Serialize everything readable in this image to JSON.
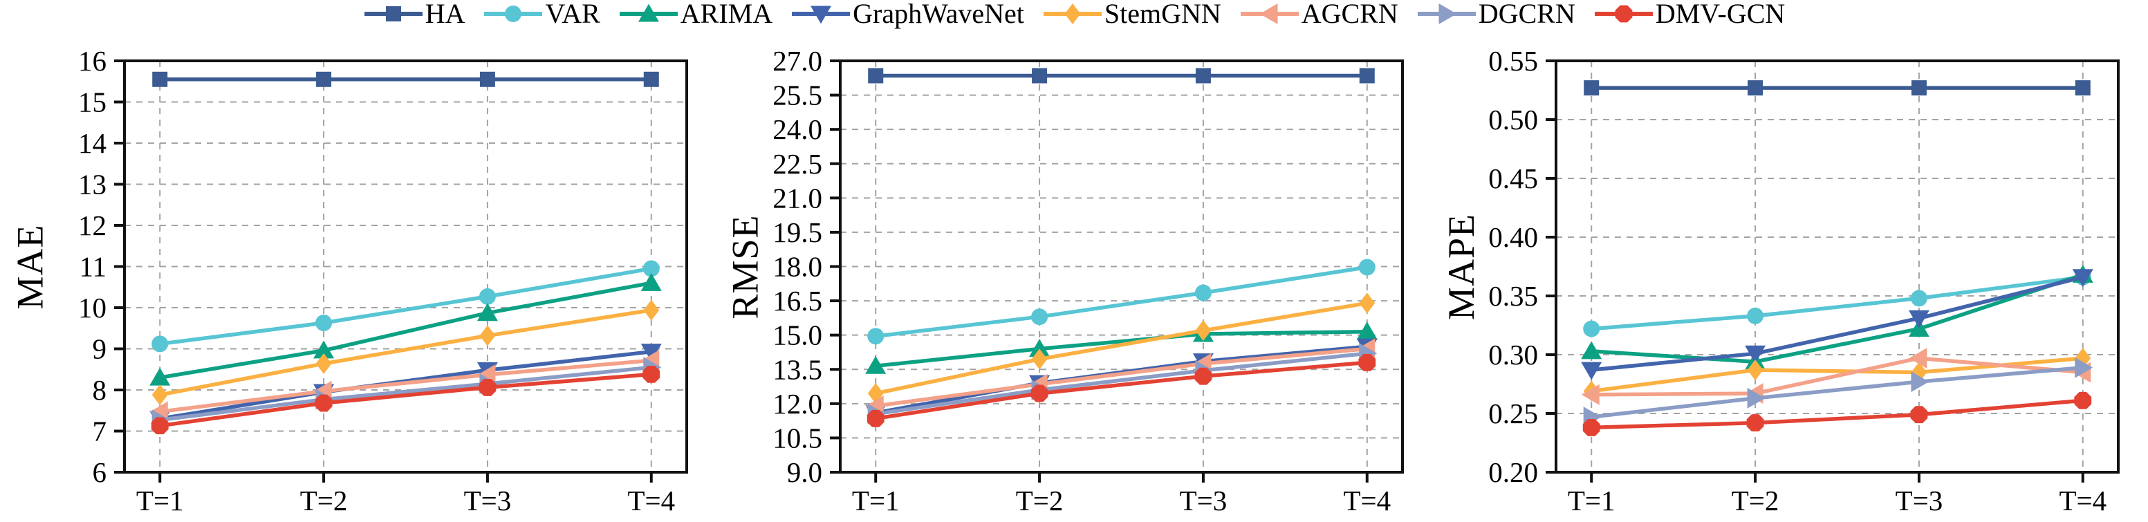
{
  "legend": {
    "items": [
      {
        "id": "ha",
        "label": "HA",
        "color": "#3B5B92",
        "marker": "square"
      },
      {
        "id": "var",
        "label": "VAR",
        "color": "#57C5D4",
        "marker": "circle"
      },
      {
        "id": "arima",
        "label": "ARIMA",
        "color": "#0DA183",
        "marker": "triangle-up"
      },
      {
        "id": "graphwavenet",
        "label": "GraphWaveNet",
        "color": "#4264AC",
        "marker": "triangle-down"
      },
      {
        "id": "stemgnn",
        "label": "StemGNN",
        "color": "#FBB042",
        "marker": "diamond"
      },
      {
        "id": "agcrn",
        "label": "AGCRN",
        "color": "#F4A189",
        "marker": "triangle-left"
      },
      {
        "id": "dgcrn",
        "label": "DGCRN",
        "color": "#8B9DC6",
        "marker": "triangle-right"
      },
      {
        "id": "dmv-gcn",
        "label": "DMV-GCN",
        "color": "#E34233",
        "marker": "octagon"
      }
    ]
  },
  "chart_data": [
    {
      "type": "line",
      "ylabel": "MAE",
      "categories": [
        "T=1",
        "T=2",
        "T=3",
        "T=4"
      ],
      "ylim": [
        6,
        16
      ],
      "yticks": [
        6,
        7,
        8,
        9,
        10,
        11,
        12,
        13,
        14,
        15,
        16
      ],
      "ytick_labels": [
        "6",
        "7",
        "8",
        "9",
        "10",
        "11",
        "12",
        "13",
        "14",
        "15",
        "16"
      ],
      "grid": true,
      "legend_position": "top-center-shared",
      "series": [
        {
          "name": "HA",
          "color": "#3B5B92",
          "marker": "square",
          "values": [
            15.55,
            15.55,
            15.55,
            15.55
          ]
        },
        {
          "name": "VAR",
          "color": "#57C5D4",
          "marker": "circle",
          "values": [
            9.12,
            9.63,
            10.27,
            10.95
          ]
        },
        {
          "name": "ARIMA",
          "color": "#0DA183",
          "marker": "triangle-up",
          "values": [
            8.3,
            8.96,
            9.87,
            10.6
          ]
        },
        {
          "name": "GraphWaveNet",
          "color": "#4264AC",
          "marker": "triangle-down",
          "values": [
            7.3,
            7.95,
            8.48,
            8.93
          ]
        },
        {
          "name": "StemGNN",
          "color": "#FBB042",
          "marker": "diamond",
          "values": [
            7.88,
            8.64,
            9.32,
            9.94
          ]
        },
        {
          "name": "AGCRN",
          "color": "#F4A189",
          "marker": "triangle-left",
          "values": [
            7.47,
            7.97,
            8.37,
            8.72
          ]
        },
        {
          "name": "DGCRN",
          "color": "#8B9DC6",
          "marker": "triangle-right",
          "values": [
            7.27,
            7.77,
            8.15,
            8.55
          ]
        },
        {
          "name": "DMV-GCN",
          "color": "#E34233",
          "marker": "octagon",
          "values": [
            7.13,
            7.68,
            8.06,
            8.38
          ]
        }
      ]
    },
    {
      "type": "line",
      "ylabel": "RMSE",
      "categories": [
        "T=1",
        "T=2",
        "T=3",
        "T=4"
      ],
      "ylim": [
        9.0,
        27.0
      ],
      "yticks": [
        9.0,
        10.5,
        12.0,
        13.5,
        15.0,
        16.5,
        18.0,
        19.5,
        21.0,
        22.5,
        24.0,
        25.5,
        27.0
      ],
      "ytick_labels": [
        "9.0",
        "10.5",
        "12.0",
        "13.5",
        "15.0",
        "16.5",
        "18.0",
        "19.5",
        "21.0",
        "22.5",
        "24.0",
        "25.5",
        "27.0"
      ],
      "grid": true,
      "legend_position": "top-center-shared",
      "series": [
        {
          "name": "HA",
          "color": "#3B5B92",
          "marker": "square",
          "values": [
            26.35,
            26.35,
            26.35,
            26.35
          ]
        },
        {
          "name": "VAR",
          "color": "#57C5D4",
          "marker": "circle",
          "values": [
            14.95,
            15.8,
            16.85,
            17.97
          ]
        },
        {
          "name": "ARIMA",
          "color": "#0DA183",
          "marker": "triangle-up",
          "values": [
            13.65,
            14.4,
            15.05,
            15.15
          ]
        },
        {
          "name": "GraphWaveNet",
          "color": "#4264AC",
          "marker": "triangle-down",
          "values": [
            11.6,
            12.9,
            13.85,
            14.5
          ]
        },
        {
          "name": "StemGNN",
          "color": "#FBB042",
          "marker": "diamond",
          "values": [
            12.45,
            13.95,
            15.2,
            16.4
          ]
        },
        {
          "name": "AGCRN",
          "color": "#F4A189",
          "marker": "triangle-left",
          "values": [
            11.9,
            12.85,
            13.75,
            14.4
          ]
        },
        {
          "name": "DGCRN",
          "color": "#8B9DC6",
          "marker": "triangle-right",
          "values": [
            11.55,
            12.6,
            13.45,
            14.2
          ]
        },
        {
          "name": "DMV-GCN",
          "color": "#E34233",
          "marker": "octagon",
          "values": [
            11.35,
            12.45,
            13.2,
            13.8
          ]
        }
      ]
    },
    {
      "type": "line",
      "ylabel": "MAPE",
      "categories": [
        "T=1",
        "T=2",
        "T=3",
        "T=4"
      ],
      "ylim": [
        0.2,
        0.55
      ],
      "yticks": [
        0.2,
        0.25,
        0.3,
        0.35,
        0.4,
        0.45,
        0.5,
        0.55
      ],
      "ytick_labels": [
        "0.20",
        "0.25",
        "0.30",
        "0.35",
        "0.40",
        "0.45",
        "0.50",
        "0.55"
      ],
      "grid": true,
      "legend_position": "top-center-shared",
      "series": [
        {
          "name": "HA",
          "color": "#3B5B92",
          "marker": "square",
          "values": [
            0.527,
            0.527,
            0.527,
            0.527
          ]
        },
        {
          "name": "VAR",
          "color": "#57C5D4",
          "marker": "circle",
          "values": [
            0.322,
            0.333,
            0.348,
            0.366
          ]
        },
        {
          "name": "ARIMA",
          "color": "#0DA183",
          "marker": "triangle-up",
          "values": [
            0.303,
            0.294,
            0.322,
            0.368
          ]
        },
        {
          "name": "GraphWaveNet",
          "color": "#4264AC",
          "marker": "triangle-down",
          "values": [
            0.287,
            0.301,
            0.331,
            0.366
          ]
        },
        {
          "name": "StemGNN",
          "color": "#FBB042",
          "marker": "diamond",
          "values": [
            0.269,
            0.287,
            0.285,
            0.297
          ]
        },
        {
          "name": "AGCRN",
          "color": "#F4A189",
          "marker": "triangle-left",
          "values": [
            0.266,
            0.267,
            0.297,
            0.285
          ]
        },
        {
          "name": "DGCRN",
          "color": "#8B9DC6",
          "marker": "triangle-right",
          "values": [
            0.247,
            0.263,
            0.277,
            0.289
          ]
        },
        {
          "name": "DMV-GCN",
          "color": "#E34233",
          "marker": "octagon",
          "values": [
            0.238,
            0.242,
            0.249,
            0.261
          ]
        }
      ]
    }
  ],
  "style": {
    "grid_color": "#A3A3A3",
    "spine_color": "#111111",
    "background": "#FFFFFF"
  }
}
